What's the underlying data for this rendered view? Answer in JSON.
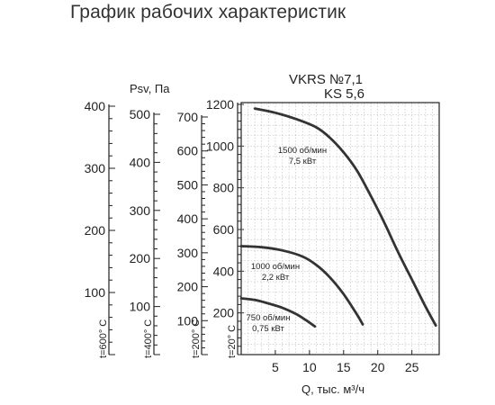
{
  "title": "График рабочих характеристик",
  "chart_data": {
    "type": "line",
    "model": "VKRS №7,1",
    "submodel": "KS 5,6",
    "ylabel": "Psv, Па",
    "xlabel": "Q, тыс. м³/ч",
    "xlim": [
      0,
      29
    ],
    "ylim": [
      0,
      1200
    ],
    "x_ticks": [
      5,
      10,
      15,
      20,
      25
    ],
    "y_ticks": [
      200,
      400,
      600,
      800,
      1000,
      1200
    ],
    "grid": true,
    "series": [
      {
        "name": "1500 об/мин",
        "power": "7,5 кВт",
        "x": [
          2,
          5,
          8,
          11,
          13,
          15,
          17,
          19,
          21,
          23,
          25,
          27,
          28.5
        ],
        "y": [
          1180,
          1160,
          1130,
          1090,
          1040,
          970,
          880,
          760,
          630,
          490,
          360,
          230,
          140
        ]
      },
      {
        "name": "1000 об/мин",
        "power": "2,2 кВт",
        "x": [
          0,
          3,
          6,
          9,
          11,
          13,
          15,
          17,
          17.8
        ],
        "y": [
          520,
          515,
          500,
          470,
          430,
          370,
          290,
          190,
          145
        ]
      },
      {
        "name": "750 об/мин",
        "power": "0,75 кВт",
        "x": [
          0,
          2,
          4,
          6,
          8,
          9.5,
          10.8
        ],
        "y": [
          270,
          262,
          245,
          225,
          195,
          165,
          135
        ]
      }
    ],
    "temperature_axes": [
      {
        "label": "t=600° C",
        "ticks": [
          0,
          100,
          200,
          300,
          400
        ],
        "max": 400
      },
      {
        "label": "t=400° C",
        "ticks": [
          0,
          100,
          200,
          300,
          400,
          500
        ],
        "max": 500
      },
      {
        "label": "t=200° C",
        "ticks": [
          0,
          100,
          200,
          300,
          400,
          500,
          600,
          700
        ],
        "max": 700
      },
      {
        "label": "t=20° C",
        "ticks": [
          0,
          200,
          400,
          600,
          800,
          1000,
          1200
        ],
        "max": 1200
      }
    ]
  }
}
